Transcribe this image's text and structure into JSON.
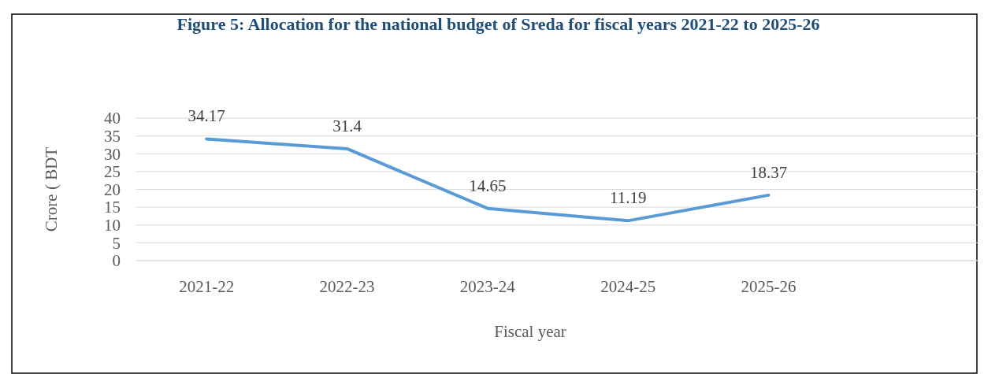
{
  "chart_data": {
    "type": "line",
    "title": "Figure 5: Allocation for the national budget of Sreda for fiscal years 2021-22 to 2025-26",
    "xlabel": "Fiscal year",
    "ylabel": "Crore ( BDT",
    "categories": [
      "2021-22",
      "2022-23",
      "2023-24",
      "2024-25",
      "2025-26",
      null
    ],
    "series": [
      {
        "color": "#5b9bd5",
        "values": [
          34.17,
          31.4,
          14.65,
          11.19,
          18.37,
          null
        ]
      }
    ],
    "ylim": [
      0,
      40
    ],
    "yticks": [
      0,
      5,
      10,
      15,
      20,
      25,
      30,
      35,
      40
    ],
    "grid": "y",
    "data_labels": true,
    "marker": "none",
    "line_style": "solid"
  }
}
